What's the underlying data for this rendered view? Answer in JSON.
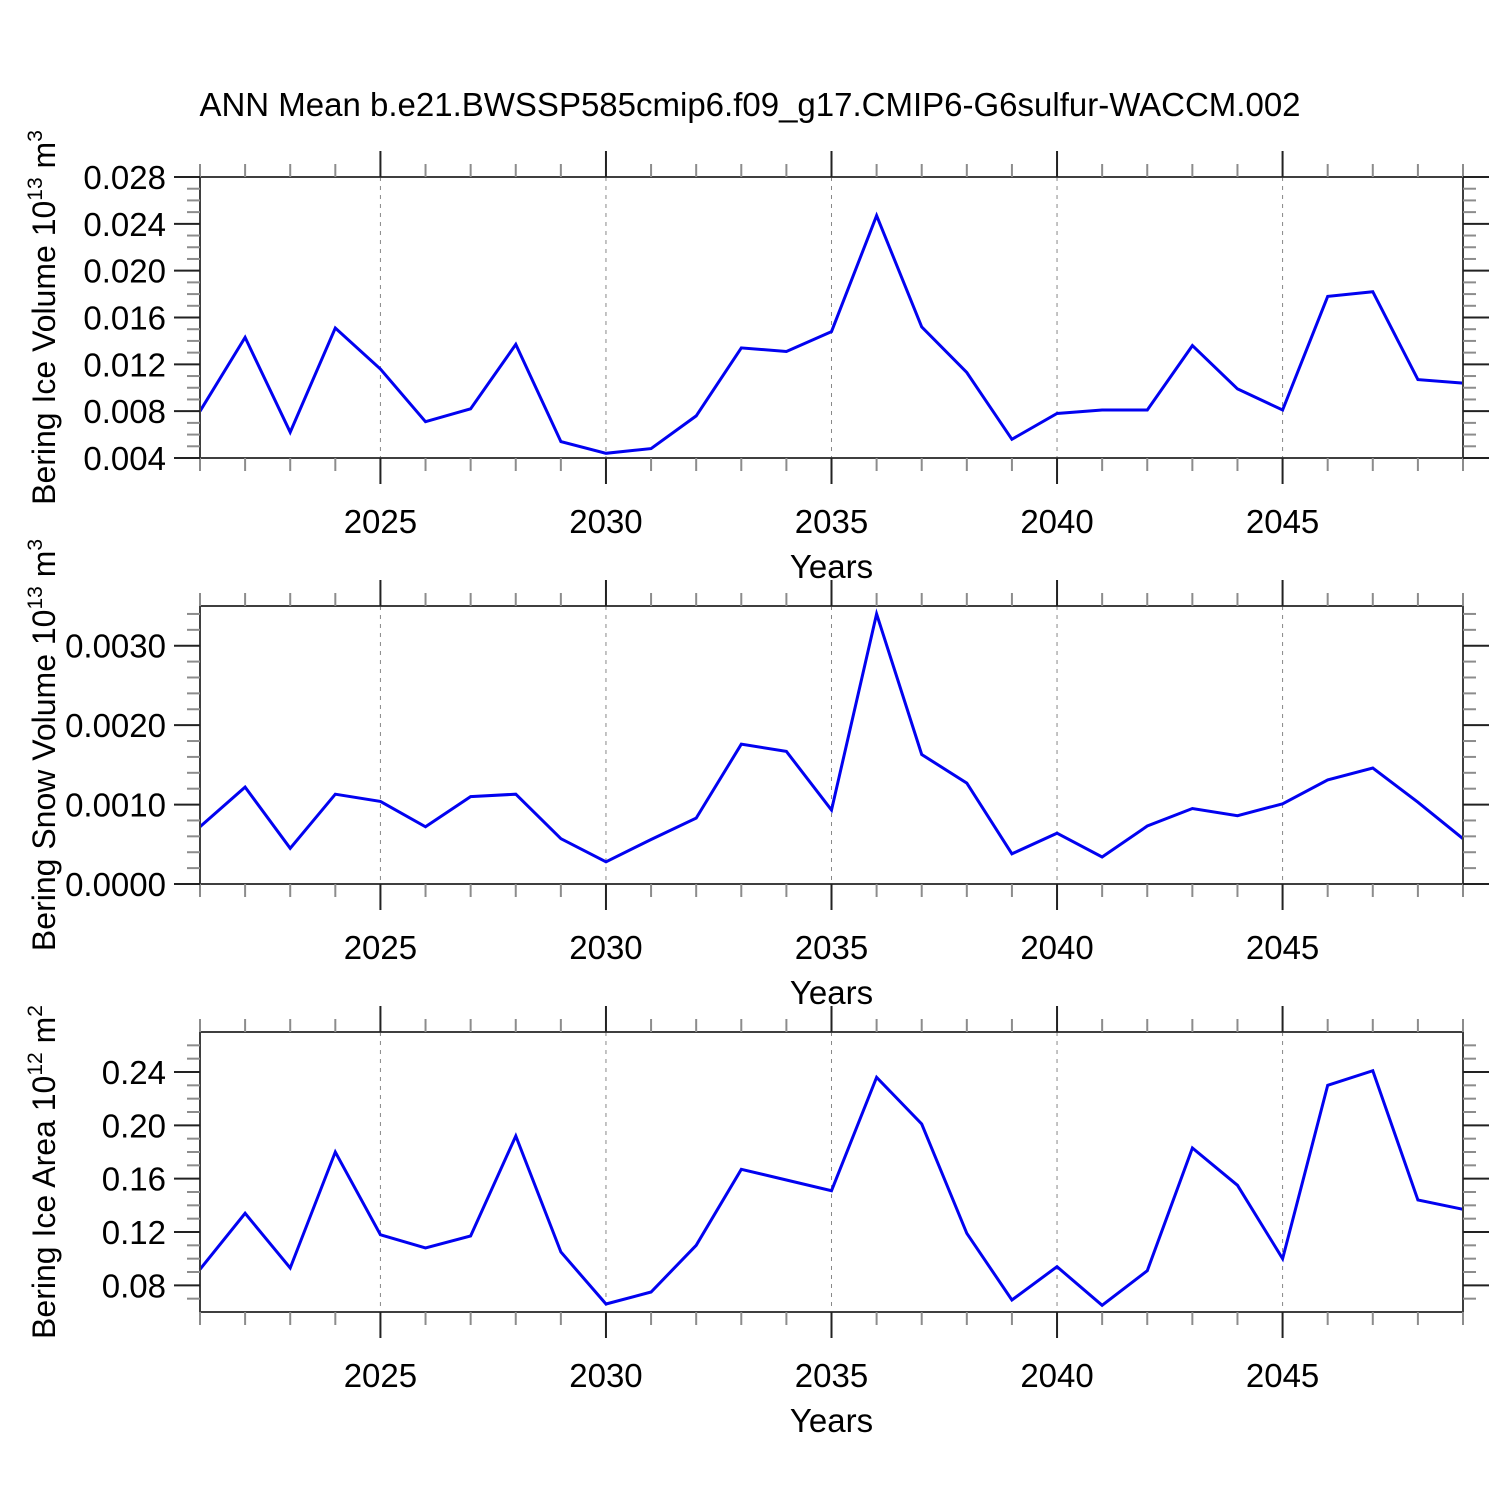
{
  "page": {
    "title": "ANN Mean b.e21.BWSSP585cmip6.f09_g17.CMIP6-G6sulfur-WACCM.002"
  },
  "style": {
    "line_color": "#0202f0",
    "frame_color": "#3f3f3f",
    "major_tick_color": "#222222",
    "minor_tick_color": "#8c8c8c",
    "grid_color": "#888888",
    "text_color": "#000000",
    "background": "#ffffff"
  },
  "chart_data": [
    {
      "type": "line",
      "id": "bering-ice-volume",
      "title": "",
      "ylabel": "Bering Ice Volume 10^13 m^3",
      "ylabel_parts": [
        {
          "text": "Bering Ice Volume 10"
        },
        {
          "sup": "13"
        },
        {
          "text": " m"
        },
        {
          "sup": "3"
        }
      ],
      "xlabel": "Years",
      "x": [
        2021,
        2022,
        2023,
        2024,
        2025,
        2026,
        2027,
        2028,
        2029,
        2030,
        2031,
        2032,
        2033,
        2034,
        2035,
        2036,
        2037,
        2038,
        2039,
        2040,
        2041,
        2042,
        2043,
        2044,
        2045,
        2046,
        2047,
        2048,
        2049
      ],
      "values": [
        0.008,
        0.0143,
        0.0062,
        0.0151,
        0.0116,
        0.0071,
        0.0082,
        0.0137,
        0.0054,
        0.0044,
        0.0048,
        0.0076,
        0.0134,
        0.0131,
        0.0148,
        0.0247,
        0.0152,
        0.0113,
        0.0056,
        0.0078,
        0.0081,
        0.0081,
        0.0136,
        0.0099,
        0.0081,
        0.0178,
        0.0182,
        0.0107,
        0.0104
      ],
      "ylim": [
        0.004,
        0.028
      ],
      "yticks": [
        0.004,
        0.008,
        0.012,
        0.016,
        0.02,
        0.024,
        0.028
      ],
      "ytick_labels": [
        "0.004",
        "0.008",
        "0.012",
        "0.016",
        "0.020",
        "0.024",
        "0.028"
      ],
      "yminor_step": 0.001,
      "xlim": [
        2021,
        2049
      ],
      "xticks": [
        2025,
        2030,
        2035,
        2040,
        2045
      ],
      "xtick_labels": [
        "2025",
        "2030",
        "2035",
        "2040",
        "2045"
      ],
      "xminor_step": 1,
      "grid": "vertical-dashed"
    },
    {
      "type": "line",
      "id": "bering-snow-volume",
      "title": "",
      "ylabel": "Bering Snow Volume 10^13 m^3",
      "ylabel_parts": [
        {
          "text": "Bering Snow Volume 10"
        },
        {
          "sup": "13"
        },
        {
          "text": " m"
        },
        {
          "sup": "3"
        }
      ],
      "xlabel": "Years",
      "x": [
        2021,
        2022,
        2023,
        2024,
        2025,
        2026,
        2027,
        2028,
        2029,
        2030,
        2031,
        2032,
        2033,
        2034,
        2035,
        2036,
        2037,
        2038,
        2039,
        2040,
        2041,
        2042,
        2043,
        2044,
        2045,
        2046,
        2047,
        2048,
        2049
      ],
      "values": [
        0.00072,
        0.00122,
        0.00045,
        0.00113,
        0.00104,
        0.00072,
        0.0011,
        0.00113,
        0.00057,
        0.00028,
        0.00056,
        0.00083,
        0.00176,
        0.00167,
        0.00093,
        0.0034,
        0.00163,
        0.00127,
        0.00038,
        0.00064,
        0.00034,
        0.00073,
        0.00095,
        0.00086,
        0.00101,
        0.00131,
        0.00146,
        0.00103,
        0.00057
      ],
      "ylim": [
        0.0,
        0.0035
      ],
      "yticks": [
        0.0,
        0.001,
        0.002,
        0.003
      ],
      "ytick_labels": [
        "0.0000",
        "0.0010",
        "0.0020",
        "0.0030"
      ],
      "yminor_step": 0.0002,
      "xlim": [
        2021,
        2049
      ],
      "xticks": [
        2025,
        2030,
        2035,
        2040,
        2045
      ],
      "xtick_labels": [
        "2025",
        "2030",
        "2035",
        "2040",
        "2045"
      ],
      "xminor_step": 1,
      "grid": "vertical-dashed"
    },
    {
      "type": "line",
      "id": "bering-ice-area",
      "title": "",
      "ylabel": "Bering Ice Area 10^12 m^2",
      "ylabel_parts": [
        {
          "text": "Bering Ice Area 10"
        },
        {
          "sup": "12"
        },
        {
          "text": " m"
        },
        {
          "sup": "2"
        }
      ],
      "xlabel": "Years",
      "x": [
        2021,
        2022,
        2023,
        2024,
        2025,
        2026,
        2027,
        2028,
        2029,
        2030,
        2031,
        2032,
        2033,
        2034,
        2035,
        2036,
        2037,
        2038,
        2039,
        2040,
        2041,
        2042,
        2043,
        2044,
        2045,
        2046,
        2047,
        2048,
        2049
      ],
      "values": [
        0.092,
        0.134,
        0.093,
        0.18,
        0.118,
        0.108,
        0.117,
        0.192,
        0.105,
        0.066,
        0.075,
        0.11,
        0.167,
        0.159,
        0.151,
        0.236,
        0.201,
        0.119,
        0.069,
        0.094,
        0.065,
        0.091,
        0.183,
        0.155,
        0.1,
        0.23,
        0.241,
        0.144,
        0.137
      ],
      "ylim": [
        0.06,
        0.27
      ],
      "yticks": [
        0.08,
        0.12,
        0.16,
        0.2,
        0.24
      ],
      "ytick_labels": [
        "0.08",
        "0.12",
        "0.16",
        "0.20",
        "0.24"
      ],
      "yminor_step": 0.01,
      "xlim": [
        2021,
        2049
      ],
      "xticks": [
        2025,
        2030,
        2035,
        2040,
        2045
      ],
      "xtick_labels": [
        "2025",
        "2030",
        "2035",
        "2040",
        "2045"
      ],
      "xminor_step": 1,
      "grid": "vertical-dashed"
    }
  ]
}
